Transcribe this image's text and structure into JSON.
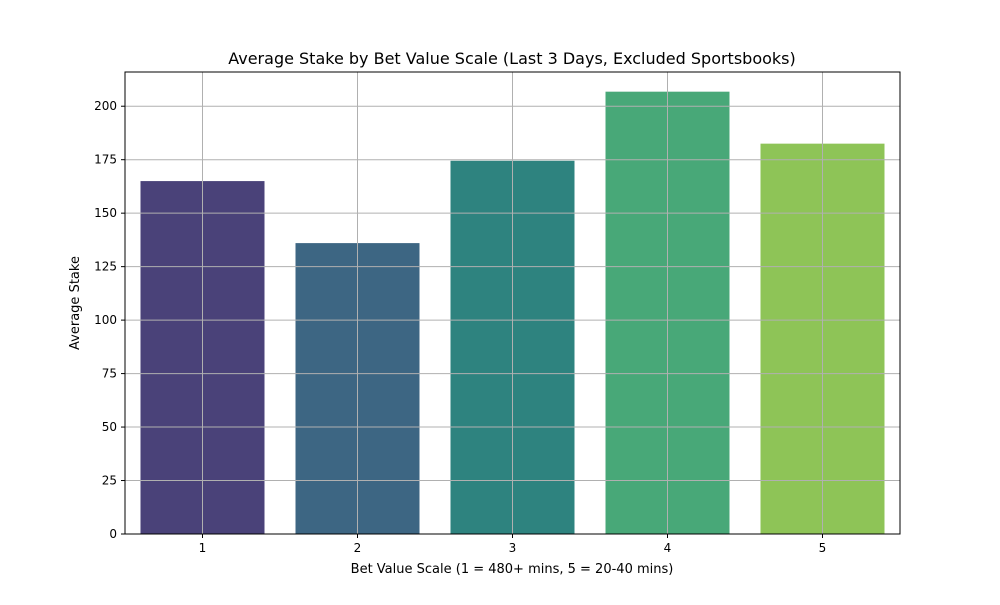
{
  "chart_data": {
    "type": "bar",
    "title": "Average Stake by Bet Value Scale (Last 3 Days, Excluded Sportsbooks)",
    "xlabel": "Bet Value Scale (1 = 480+ mins, 5 = 20-40 mins)",
    "ylabel": "Average Stake",
    "categories": [
      "1",
      "2",
      "3",
      "4",
      "5"
    ],
    "values": [
      165,
      136,
      174.5,
      206.8,
      182.5
    ],
    "colors": [
      "#4a4279",
      "#3d6683",
      "#2e837f",
      "#48a878",
      "#8ec457"
    ],
    "ylim": [
      0,
      216
    ],
    "yticks": [
      0,
      25,
      50,
      75,
      100,
      125,
      150,
      175,
      200
    ],
    "grid": true,
    "legend": "none"
  }
}
